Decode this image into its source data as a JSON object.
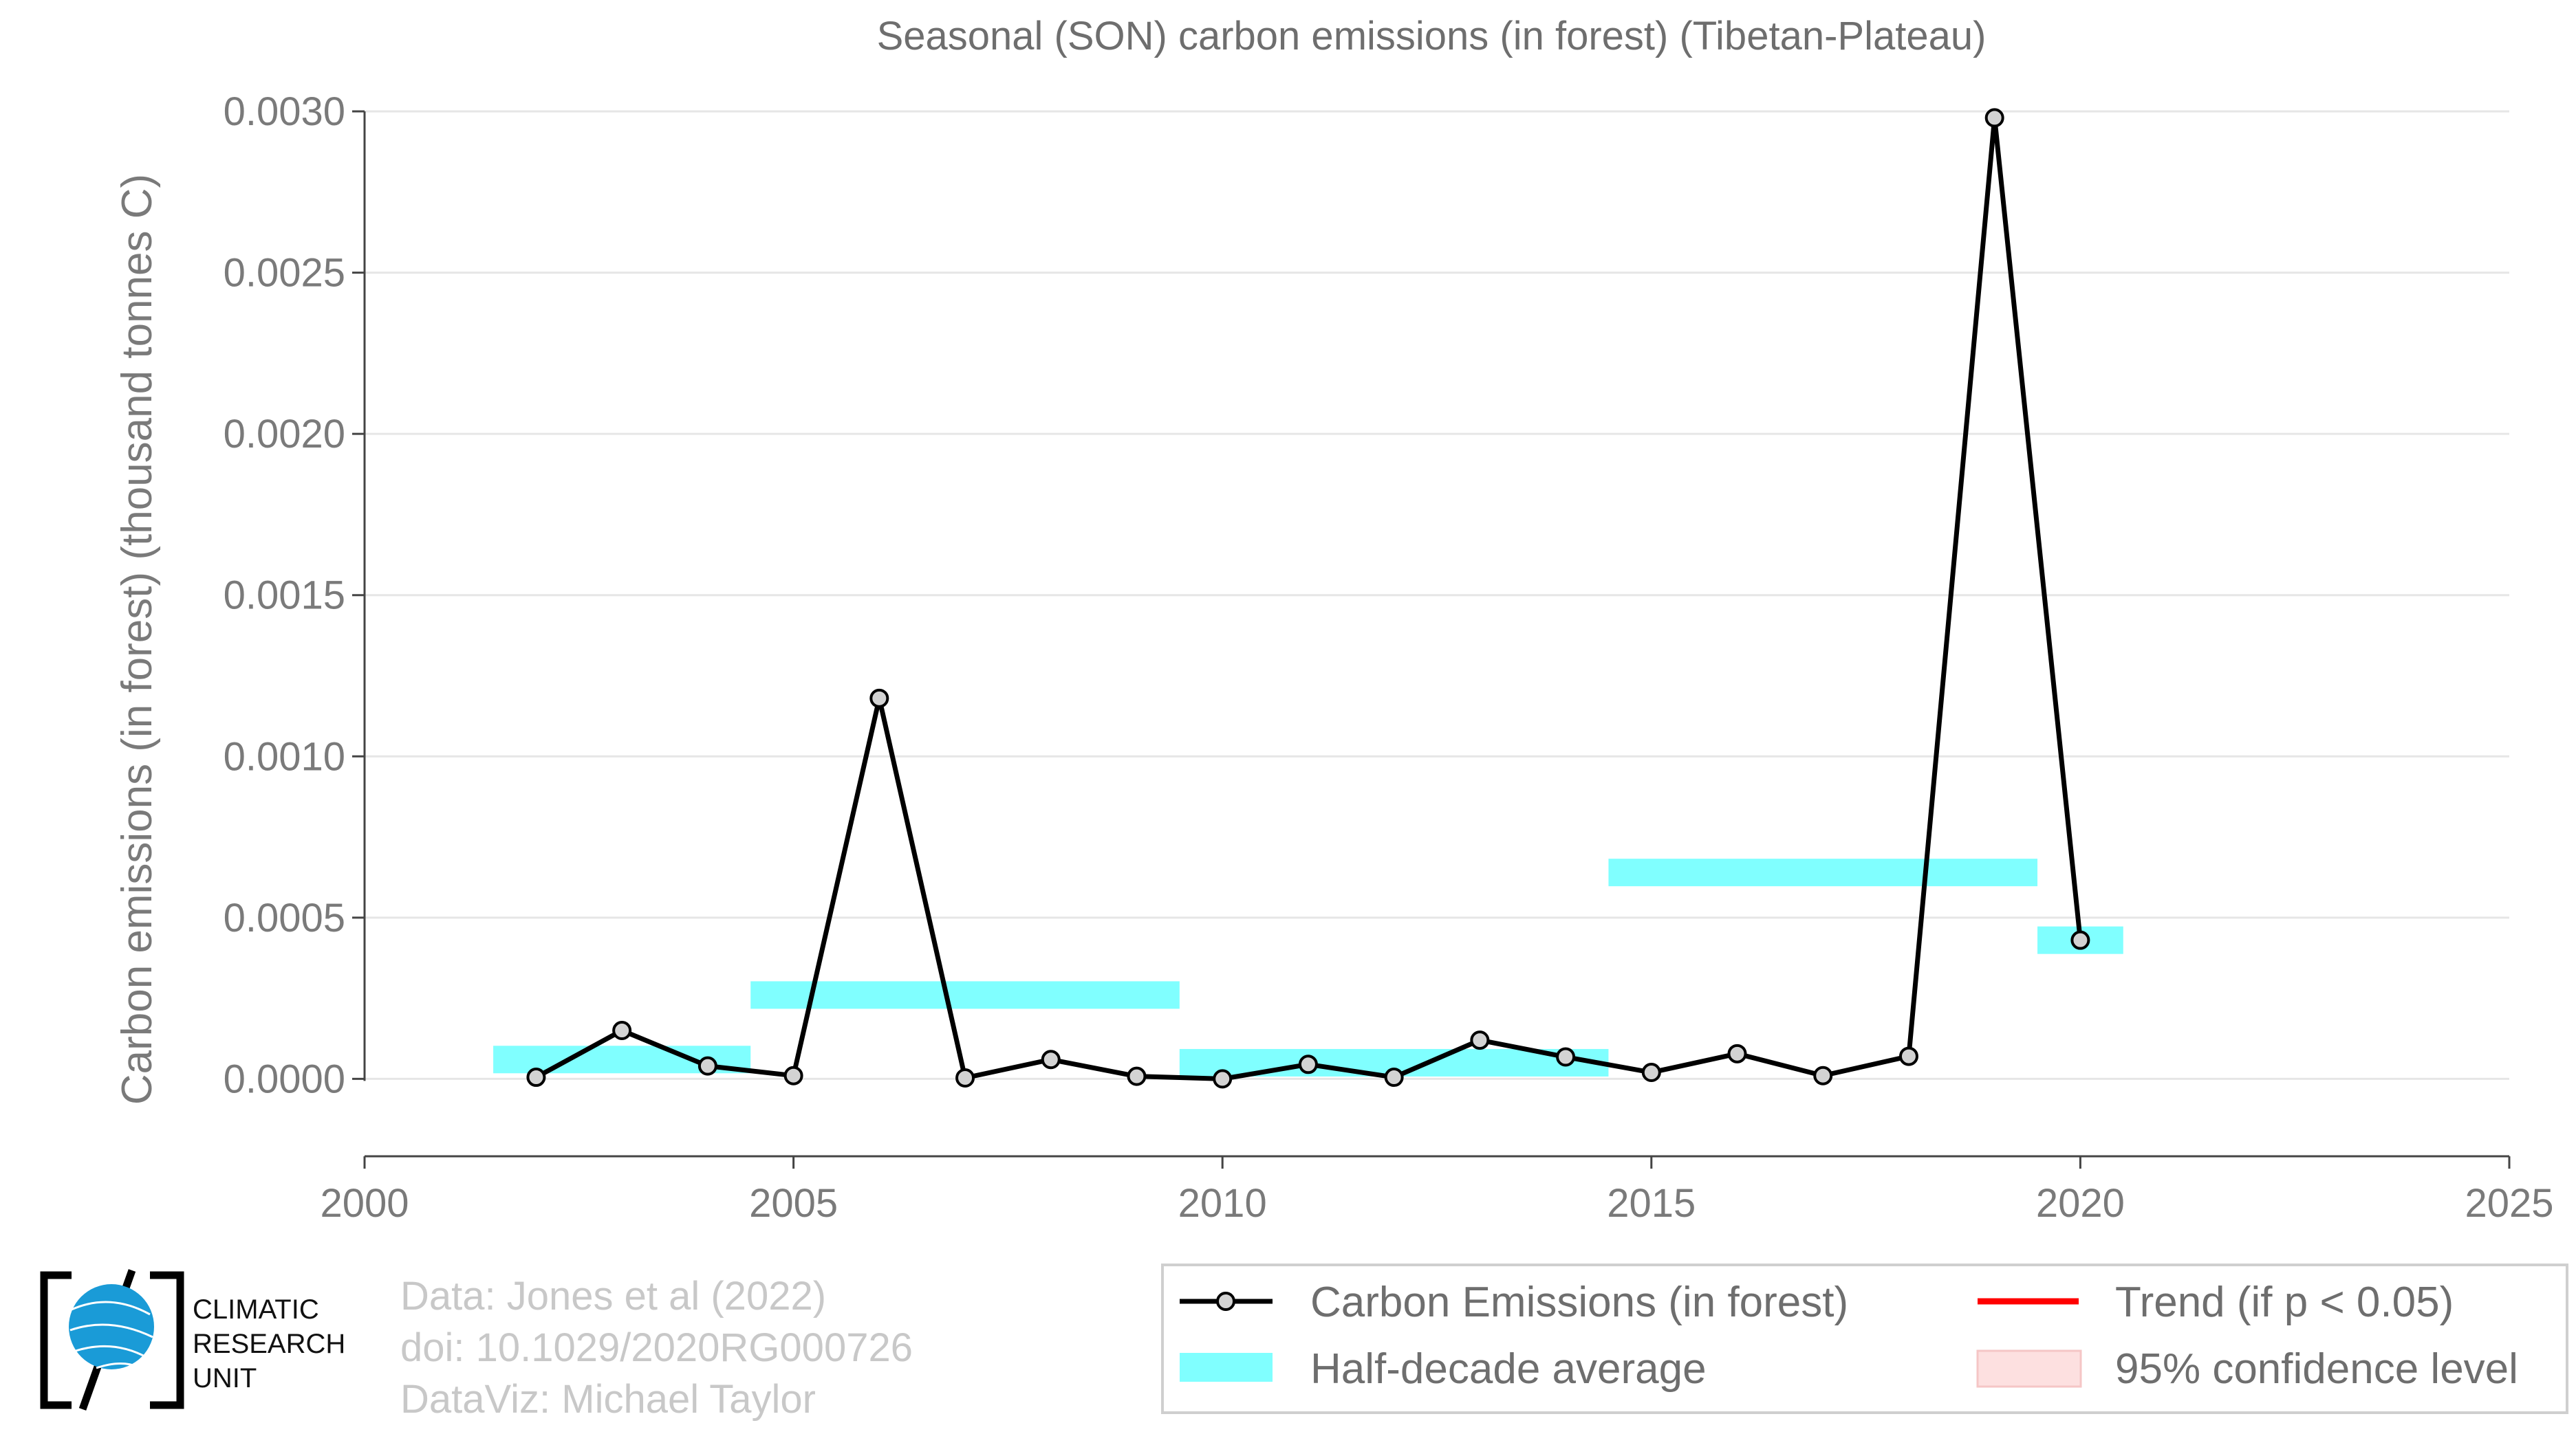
{
  "chart_data": {
    "type": "line",
    "title": "Seasonal (SON) carbon emissions (in forest) (Tibetan-Plateau)",
    "xlabel": "",
    "ylabel": "Carbon emissions (in forest) (thousand tonnes C)",
    "xlim": [
      2000,
      2025
    ],
    "ylim": [
      -0.00024,
      0.003
    ],
    "x_ticks": [
      2000,
      2005,
      2010,
      2015,
      2020,
      2025
    ],
    "y_ticks": [
      0.0,
      0.0005,
      0.001,
      0.0015,
      0.002,
      0.0025,
      0.003
    ],
    "y_tick_labels": [
      "0.0000",
      "0.0005",
      "0.0010",
      "0.0015",
      "0.0020",
      "0.0025",
      "0.0030"
    ],
    "grid": true,
    "series": [
      {
        "name": "Carbon Emissions (in forest)",
        "x": [
          2002,
          2003,
          2004,
          2005,
          2006,
          2007,
          2008,
          2009,
          2010,
          2011,
          2012,
          2013,
          2014,
          2015,
          2016,
          2017,
          2018,
          2019,
          2020
        ],
        "y": [
          5e-06,
          0.00015,
          4e-05,
          1e-05,
          0.00118,
          3e-06,
          6e-05,
          8e-06,
          0.0,
          4.5e-05,
          5e-06,
          0.00012,
          6.8e-05,
          2e-05,
          7.8e-05,
          1e-05,
          7e-05,
          0.00298,
          0.00043
        ]
      }
    ],
    "half_decade_average": {
      "name": "Half-decade average",
      "segments": [
        {
          "x_start": 2001.5,
          "x_end": 2004.5,
          "value": 6e-05
        },
        {
          "x_start": 2004.5,
          "x_end": 2009.5,
          "value": 0.00026
        },
        {
          "x_start": 2009.5,
          "x_end": 2014.5,
          "value": 5e-05
        },
        {
          "x_start": 2014.5,
          "x_end": 2019.5,
          "value": 0.00064
        },
        {
          "x_start": 2019.5,
          "x_end": 2020.5,
          "value": 0.00043
        }
      ]
    },
    "legend": {
      "placement": "bottom-right",
      "items": [
        "Carbon Emissions (in forest)",
        "Half-decade average",
        "Trend (if p < 0.05)",
        "95% confidence level"
      ]
    },
    "colors": {
      "line": "#000000",
      "marker_fill": "#d3d3d3",
      "half_decade": "#80ffff",
      "trend": "#ff0000",
      "confidence": "#fde0e0"
    }
  },
  "credits": {
    "line1": "Data: Jones et al (2022)",
    "line2": "doi: 10.1029/2020RG000726",
    "line3": "DataViz: Michael Taylor"
  },
  "logo": {
    "line1": "CLIMATIC",
    "line2": "RESEARCH",
    "line3": "UNIT"
  }
}
